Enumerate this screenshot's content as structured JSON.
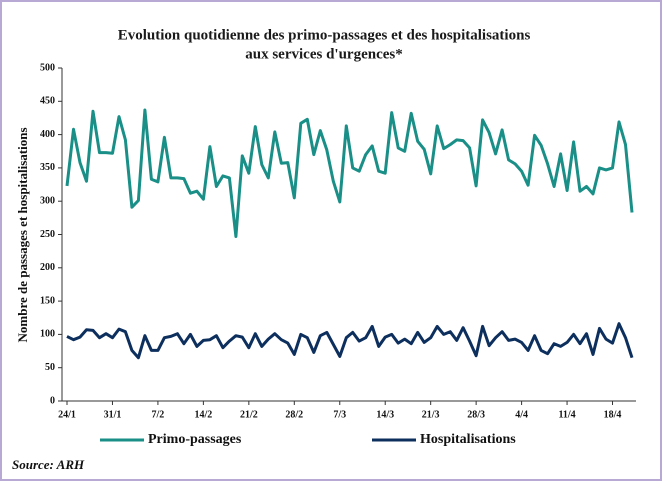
{
  "chart_data": {
    "type": "line",
    "title": [
      "Evolution quotidienne des primo-passages et des hospitalisations",
      "aux services d'urgences*"
    ],
    "ylabel": "Nombre de passages et hospitalisations",
    "source": "Source: ARH",
    "categories": [
      "24/1",
      null,
      null,
      null,
      null,
      null,
      null,
      "31/1",
      null,
      null,
      null,
      null,
      null,
      null,
      "7/2",
      null,
      null,
      null,
      null,
      null,
      null,
      "14/2",
      null,
      null,
      null,
      null,
      null,
      null,
      "21/2",
      null,
      null,
      null,
      null,
      null,
      null,
      "28/2",
      null,
      null,
      null,
      null,
      null,
      null,
      "7/3",
      null,
      null,
      null,
      null,
      null,
      null,
      "14/3",
      null,
      null,
      null,
      null,
      null,
      null,
      "21/3",
      null,
      null,
      null,
      null,
      null,
      null,
      "28/3",
      null,
      null,
      null,
      null,
      null,
      null,
      "4/4",
      null,
      null,
      null,
      null,
      null,
      null,
      "11/4",
      null,
      null,
      null,
      null,
      null,
      null,
      "18/4",
      null,
      null,
      null
    ],
    "series": [
      {
        "name": "Primo-passages",
        "color": "#1a8f87",
        "values": [
          323,
          408,
          358,
          330,
          435,
          373,
          373,
          372,
          427,
          392,
          291,
          301,
          437,
          333,
          329,
          396,
          335,
          335,
          334,
          312,
          315,
          303,
          382,
          322,
          338,
          335,
          247,
          368,
          342,
          412,
          355,
          335,
          404,
          357,
          358,
          305,
          417,
          423,
          370,
          406,
          377,
          330,
          299,
          413,
          350,
          345,
          370,
          383,
          345,
          342,
          433,
          380,
          375,
          432,
          390,
          378,
          341,
          413,
          379,
          385,
          392,
          391,
          380,
          323,
          422,
          403,
          371,
          407,
          362,
          356,
          345,
          324,
          399,
          384,
          356,
          322,
          371,
          316,
          389,
          315,
          322,
          311,
          350,
          347,
          350,
          419,
          385,
          283
        ]
      },
      {
        "name": "Hospitalisations",
        "color": "#0d2f5e",
        "values": [
          97,
          92,
          96,
          107,
          106,
          95,
          101,
          95,
          108,
          104,
          76,
          65,
          98,
          76,
          76,
          95,
          97,
          101,
          86,
          100,
          82,
          91,
          92,
          98,
          80,
          90,
          98,
          96,
          80,
          101,
          82,
          93,
          101,
          92,
          87,
          70,
          100,
          95,
          73,
          98,
          103,
          85,
          67,
          95,
          103,
          90,
          95,
          112,
          82,
          96,
          100,
          87,
          93,
          86,
          103,
          88,
          95,
          112,
          100,
          104,
          91,
          110,
          90,
          68,
          112,
          83,
          95,
          104,
          91,
          93,
          88,
          76,
          98,
          76,
          71,
          86,
          82,
          88,
          100,
          86,
          101,
          70,
          109,
          93,
          87,
          116,
          95,
          65
        ]
      }
    ],
    "ylim": [
      0,
      500
    ],
    "yticks": [
      0,
      50,
      100,
      150,
      200,
      250,
      300,
      350,
      400,
      450,
      500
    ],
    "legend": "bottom"
  }
}
